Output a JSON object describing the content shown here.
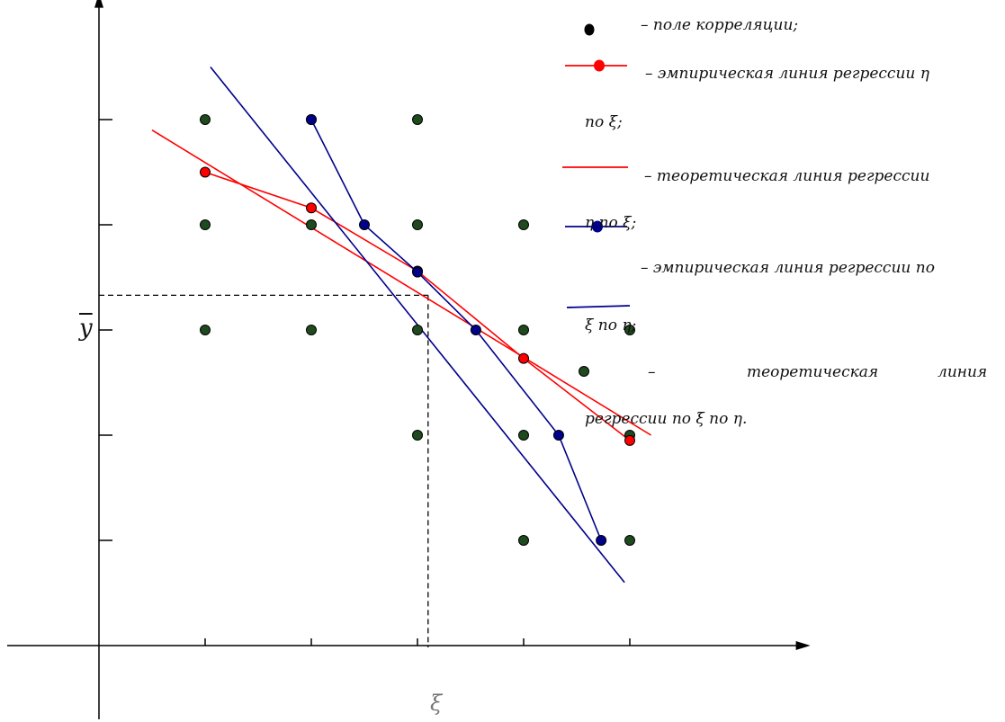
{
  "chart_data": {
    "type": "scatter",
    "x_grid": [
      1,
      2,
      3,
      4,
      5
    ],
    "y_grid": [
      1,
      2,
      3,
      4,
      5
    ],
    "xlim": [
      0,
      6.7
    ],
    "ylim": [
      0,
      6.2
    ],
    "grid": false,
    "x_mean": 3.1,
    "y_mean": 3.33,
    "xlabel": "ξ",
    "ymean_label": "y",
    "correlation_field": {
      "x": [
        1,
        2,
        3,
        1,
        2,
        3,
        4,
        1,
        2,
        3,
        4,
        5,
        3,
        4,
        5,
        4,
        5
      ],
      "y": [
        5,
        5,
        5,
        4,
        4,
        4,
        4,
        3,
        3,
        3,
        3,
        3,
        2,
        2,
        2,
        1,
        1
      ],
      "color": "#1e4a1e"
    },
    "series": [
      {
        "role": "empirical_eta_on_xi",
        "type": "line",
        "color": "#ff0000",
        "x": [
          1,
          2,
          3,
          4,
          5
        ],
        "y": [
          4.5,
          4.16,
          3.56,
          2.73,
          1.95
        ]
      },
      {
        "role": "theoretical_eta_on_xi",
        "type": "line",
        "color": "#ff0000",
        "x": [
          0.5,
          5.2
        ],
        "y": [
          4.9,
          2.0
        ]
      },
      {
        "role": "empirical_xi_on_eta",
        "type": "line",
        "color": "#00008b",
        "x": [
          2.0,
          2.5,
          3.0,
          3.55,
          4.33,
          4.73
        ],
        "y": [
          5.0,
          4.0,
          3.55,
          3.0,
          2.0,
          1.0
        ]
      },
      {
        "role": "theoretical_xi_on_eta",
        "type": "line",
        "color": "#00008b",
        "x": [
          1.05,
          4.95
        ],
        "y": [
          5.5,
          0.6
        ]
      }
    ]
  },
  "legend": {
    "field_text": "– поле корреляции;",
    "emp_eta_text": "– эмпирическая линия регрессии η",
    "emp_eta_cont": "по ξ;",
    "theo_eta_text": "– теоретическая линия регрессии",
    "theo_eta_cont": "η по ξ;",
    "emp_xi_text": "– эмпирическая линия регрессии по",
    "emp_xi_cont": "ξ по η;",
    "theo_xi_dash": "–",
    "theo_xi_word1": "теоретическая",
    "theo_xi_word2": "линия",
    "theo_xi_cont": "регрессии по ξ по η.",
    "colors": {
      "red": "#ff0000",
      "blue": "#00008b",
      "black": "#000000",
      "green": "#1e4a1e"
    }
  }
}
